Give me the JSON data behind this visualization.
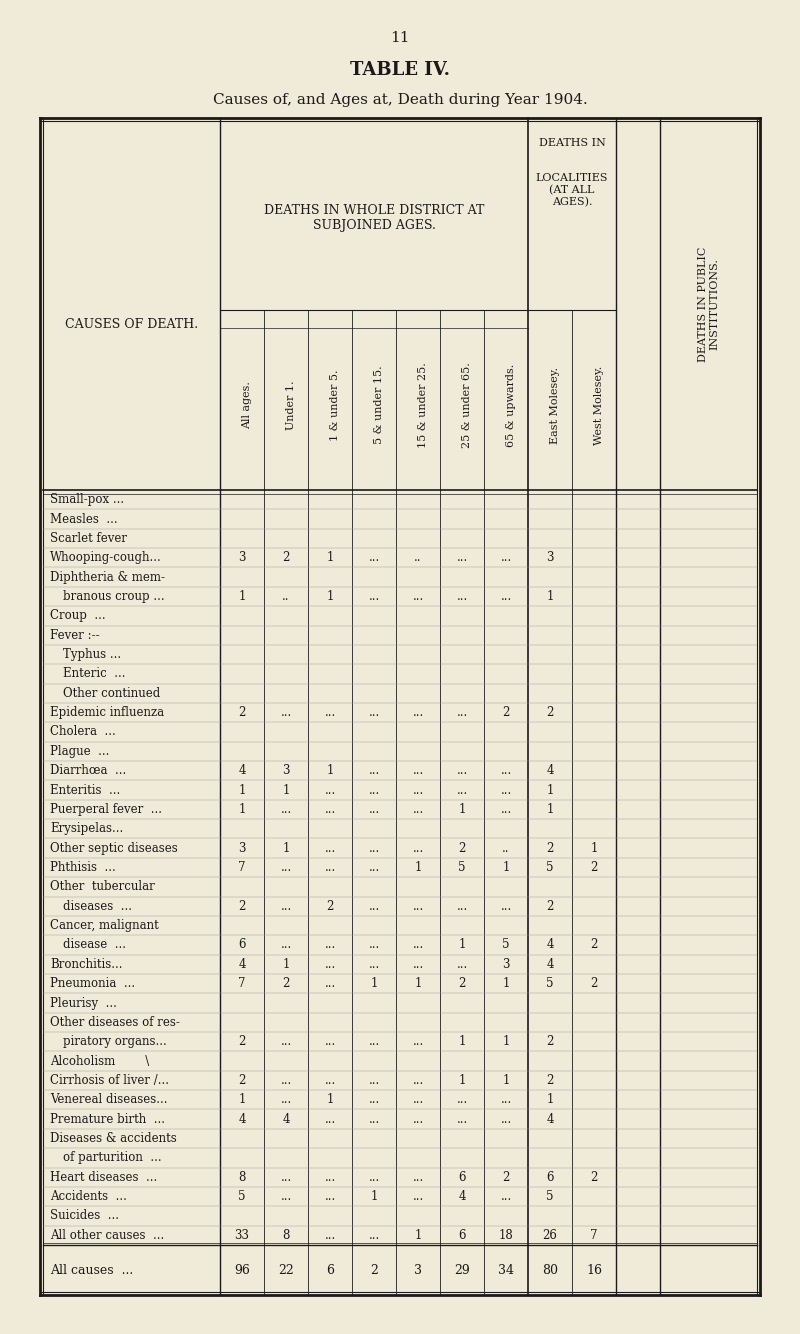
{
  "page_number": "11",
  "title": "TABLE IV.",
  "subtitle": "Causes of, and Ages at, Death during Year 1904.",
  "bg_color": "#f0ead8",
  "col_headers": [
    "All ages.",
    "Under 1.",
    "1 & under 5.",
    "5 & under 15.",
    "15 & under 25.",
    "25 & under 65.",
    "65 & upwards.",
    "East Molesey.",
    "West Molesey."
  ],
  "rows": [
    {
      "cause": "Small-pox ...",
      "indent": false,
      "vals": [
        "",
        "",
        "",
        "",
        "",
        "",
        "",
        "",
        ""
      ]
    },
    {
      "cause": "Measles  ...",
      "indent": false,
      "vals": [
        "",
        "",
        "",
        "",
        "",
        "",
        "",
        "",
        ""
      ]
    },
    {
      "cause": "Scarlet fever",
      "indent": false,
      "vals": [
        "",
        "",
        "",
        "",
        "",
        "",
        "",
        "",
        ""
      ]
    },
    {
      "cause": "Whooping-cough...",
      "indent": false,
      "vals": [
        "3",
        "2",
        "1",
        "...",
        "..",
        "...",
        "...",
        "3",
        ""
      ]
    },
    {
      "cause": "Diphtheria & mem-",
      "indent": false,
      "vals": [
        "",
        "",
        "",
        "",
        "",
        "",
        "",
        "",
        ""
      ]
    },
    {
      "cause": "  branous croup ...",
      "indent": true,
      "vals": [
        "1",
        "..",
        "1",
        "...",
        "...",
        "...",
        "...",
        "1",
        ""
      ]
    },
    {
      "cause": "Croup  ...",
      "indent": false,
      "vals": [
        "",
        "",
        "",
        "",
        "",
        "",
        "",
        "",
        ""
      ]
    },
    {
      "cause": "Fever :--",
      "indent": false,
      "vals": [
        "",
        "",
        "",
        "",
        "",
        "",
        "",
        "",
        ""
      ]
    },
    {
      "cause": "  Typhus ...",
      "indent": true,
      "vals": [
        "",
        "",
        "",
        "",
        "",
        "",
        "",
        "",
        ""
      ]
    },
    {
      "cause": "  Enteric  ...",
      "indent": true,
      "vals": [
        "",
        "",
        "",
        "",
        "",
        "",
        "",
        "",
        ""
      ]
    },
    {
      "cause": "  Other continued",
      "indent": true,
      "vals": [
        "",
        "",
        "",
        "",
        "",
        "",
        "",
        "",
        ""
      ]
    },
    {
      "cause": "Epidemic influenza",
      "indent": false,
      "vals": [
        "2",
        "...",
        "...",
        "...",
        "...",
        "...",
        "2",
        "2",
        ""
      ]
    },
    {
      "cause": "Cholera  ...",
      "indent": false,
      "vals": [
        "",
        "",
        "",
        "",
        "",
        "",
        "",
        "",
        ""
      ]
    },
    {
      "cause": "Plague  ...",
      "indent": false,
      "vals": [
        "",
        "",
        "",
        "",
        "",
        "",
        "",
        "",
        ""
      ]
    },
    {
      "cause": "Diarrhœa  ...",
      "indent": false,
      "vals": [
        "4",
        "3",
        "1",
        "...",
        "...",
        "...",
        "...",
        "4",
        ""
      ]
    },
    {
      "cause": "Enteritis  ...",
      "indent": false,
      "vals": [
        "1",
        "1",
        "...",
        "...",
        "...",
        "...",
        "...",
        "1",
        ""
      ]
    },
    {
      "cause": "Puerperal fever  ...",
      "indent": false,
      "vals": [
        "1",
        "...",
        "...",
        "...",
        "...",
        "1",
        "...",
        "1",
        ""
      ]
    },
    {
      "cause": "Erysipelas...",
      "indent": false,
      "vals": [
        "",
        "",
        "",
        "",
        "",
        "",
        "",
        "",
        ""
      ]
    },
    {
      "cause": "Other septic diseases",
      "indent": false,
      "vals": [
        "3",
        "1",
        "...",
        "...",
        "...",
        "2",
        "..",
        "2",
        "1"
      ]
    },
    {
      "cause": "Phthisis  ...",
      "indent": false,
      "vals": [
        "7",
        "...",
        "...",
        "...",
        "1",
        "5",
        "1",
        "5",
        "2"
      ]
    },
    {
      "cause": "Other  tubercular",
      "indent": false,
      "vals": [
        "",
        "",
        "",
        "",
        "",
        "",
        "",
        "",
        ""
      ]
    },
    {
      "cause": "  diseases  ...",
      "indent": true,
      "vals": [
        "2",
        "...",
        "2",
        "...",
        "...",
        "...",
        "...",
        "2",
        ""
      ]
    },
    {
      "cause": "Cancer, malignant",
      "indent": false,
      "vals": [
        "",
        "",
        "",
        "",
        "",
        "",
        "",
        "",
        ""
      ]
    },
    {
      "cause": "  disease  ...",
      "indent": true,
      "vals": [
        "6",
        "...",
        "...",
        "...",
        "...",
        "1",
        "5",
        "4",
        "2"
      ]
    },
    {
      "cause": "Bronchitis...",
      "indent": false,
      "vals": [
        "4",
        "1",
        "...",
        "...",
        "...",
        "...",
        "3",
        "4",
        ""
      ]
    },
    {
      "cause": "Pneumonia  ...",
      "indent": false,
      "vals": [
        "7",
        "2",
        "...",
        "1",
        "1",
        "2",
        "1",
        "5",
        "2"
      ]
    },
    {
      "cause": "Pleurisy  ...",
      "indent": false,
      "vals": [
        "",
        "",
        "",
        "",
        "",
        "",
        "",
        "",
        ""
      ]
    },
    {
      "cause": "Other diseases of res-",
      "indent": false,
      "vals": [
        "",
        "",
        "",
        "",
        "",
        "",
        "",
        "",
        ""
      ]
    },
    {
      "cause": "  piratory organs...",
      "indent": true,
      "vals": [
        "2",
        "...",
        "...",
        "...",
        "...",
        "1",
        "1",
        "2",
        ""
      ]
    },
    {
      "cause": "Alcoholism        \\",
      "indent": false,
      "vals": [
        "",
        "",
        "",
        "",
        "",
        "",
        "",
        "",
        ""
      ]
    },
    {
      "cause": "Cirrhosis of liver /...",
      "indent": false,
      "vals": [
        "2",
        "...",
        "...",
        "...",
        "...",
        "1",
        "1",
        "2",
        ""
      ]
    },
    {
      "cause": "Venereal diseases...",
      "indent": false,
      "vals": [
        "1",
        "...",
        "1",
        "...",
        "...",
        "...",
        "...",
        "1",
        ""
      ]
    },
    {
      "cause": "Premature birth  ...",
      "indent": false,
      "vals": [
        "4",
        "4",
        "...",
        "...",
        "...",
        "...",
        "...",
        "4",
        ""
      ]
    },
    {
      "cause": "Diseases & accidents",
      "indent": false,
      "vals": [
        "",
        "",
        "",
        "",
        "",
        "",
        "",
        "",
        ""
      ]
    },
    {
      "cause": "  of parturition  ...",
      "indent": true,
      "vals": [
        "",
        "",
        "",
        "",
        "",
        "",
        "",
        "",
        ""
      ]
    },
    {
      "cause": "Heart diseases  ...",
      "indent": false,
      "vals": [
        "8",
        "...",
        "...",
        "...",
        "...",
        "6",
        "2",
        "6",
        "2"
      ]
    },
    {
      "cause": "Accidents  ...",
      "indent": false,
      "vals": [
        "5",
        "...",
        "...",
        "1",
        "...",
        "4",
        "...",
        "5",
        ""
      ]
    },
    {
      "cause": "Suicides  ...",
      "indent": false,
      "vals": [
        "",
        "",
        "",
        "",
        "",
        "",
        "",
        "",
        ""
      ]
    },
    {
      "cause": "All other causes  ...",
      "indent": false,
      "vals": [
        "33",
        "8",
        "...",
        "...",
        "1",
        "6",
        "18",
        "26",
        "7"
      ]
    },
    {
      "cause": "All causes  ...",
      "indent": false,
      "vals": [
        "96",
        "22",
        "6",
        "2",
        "3",
        "29",
        "34",
        "80",
        "16"
      ],
      "bold": true
    }
  ]
}
